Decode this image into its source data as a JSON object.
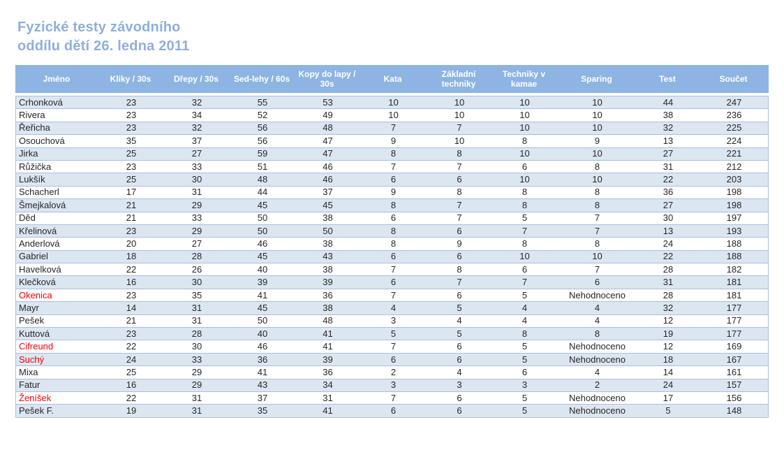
{
  "page_title": {
    "line1": "Fyzické testy závodního",
    "line2": "oddílu dětí 26. ledna 2011"
  },
  "table": {
    "columns": [
      "Jméno",
      "Kliky / 30s",
      "Dřepy / 30s",
      "Sed-lehy / 60s",
      "Kopy do lapy / 30s",
      "Kata",
      "Základní techniky",
      "Techniky v kamae",
      "Sparing",
      "Test",
      "Součet"
    ],
    "rows": [
      {
        "name": "Crhonková",
        "red": false,
        "values": [
          "23",
          "32",
          "55",
          "53",
          "10",
          "10",
          "10",
          "10",
          "44",
          "247"
        ]
      },
      {
        "name": "Rivera",
        "red": false,
        "values": [
          "23",
          "34",
          "52",
          "49",
          "10",
          "10",
          "10",
          "10",
          "38",
          "236"
        ]
      },
      {
        "name": "Řeřicha",
        "red": false,
        "values": [
          "23",
          "32",
          "56",
          "48",
          "7",
          "7",
          "10",
          "10",
          "32",
          "225"
        ]
      },
      {
        "name": "Osouchová",
        "red": false,
        "values": [
          "35",
          "37",
          "56",
          "47",
          "9",
          "10",
          "8",
          "9",
          "13",
          "224"
        ]
      },
      {
        "name": "Jirka",
        "red": false,
        "values": [
          "25",
          "27",
          "59",
          "47",
          "8",
          "8",
          "10",
          "10",
          "27",
          "221"
        ]
      },
      {
        "name": "Růžička",
        "red": false,
        "values": [
          "23",
          "33",
          "51",
          "46",
          "7",
          "7",
          "6",
          "8",
          "31",
          "212"
        ]
      },
      {
        "name": "Lukšík",
        "red": false,
        "values": [
          "25",
          "30",
          "48",
          "46",
          "6",
          "6",
          "10",
          "10",
          "22",
          "203"
        ]
      },
      {
        "name": "Schacherl",
        "red": false,
        "values": [
          "17",
          "31",
          "44",
          "37",
          "9",
          "8",
          "8",
          "8",
          "36",
          "198"
        ]
      },
      {
        "name": "Šmejkalová",
        "red": false,
        "values": [
          "21",
          "29",
          "45",
          "45",
          "8",
          "7",
          "8",
          "8",
          "27",
          "198"
        ]
      },
      {
        "name": "Děd",
        "red": false,
        "values": [
          "21",
          "33",
          "50",
          "38",
          "6",
          "7",
          "5",
          "7",
          "30",
          "197"
        ]
      },
      {
        "name": "Křelinová",
        "red": false,
        "values": [
          "23",
          "29",
          "50",
          "50",
          "8",
          "6",
          "7",
          "7",
          "13",
          "193"
        ]
      },
      {
        "name": "Anderlová",
        "red": false,
        "values": [
          "20",
          "27",
          "46",
          "38",
          "8",
          "9",
          "8",
          "8",
          "24",
          "188"
        ]
      },
      {
        "name": "Gabriel",
        "red": false,
        "values": [
          "18",
          "28",
          "45",
          "43",
          "6",
          "6",
          "10",
          "10",
          "22",
          "188"
        ]
      },
      {
        "name": "Havelková",
        "red": false,
        "values": [
          "22",
          "26",
          "40",
          "38",
          "7",
          "8",
          "6",
          "7",
          "28",
          "182"
        ]
      },
      {
        "name": "Klečková",
        "red": false,
        "values": [
          "16",
          "30",
          "39",
          "39",
          "6",
          "7",
          "7",
          "6",
          "31",
          "181"
        ]
      },
      {
        "name": "Okenica",
        "red": true,
        "values": [
          "23",
          "35",
          "41",
          "36",
          "7",
          "6",
          "5",
          "Nehodnoceno",
          "28",
          "181"
        ]
      },
      {
        "name": "Mayr",
        "red": false,
        "values": [
          "14",
          "31",
          "45",
          "38",
          "4",
          "5",
          "4",
          "4",
          "32",
          "177"
        ]
      },
      {
        "name": "Pešek",
        "red": false,
        "values": [
          "21",
          "31",
          "50",
          "48",
          "3",
          "4",
          "4",
          "4",
          "12",
          "177"
        ]
      },
      {
        "name": "Kuttová",
        "red": false,
        "values": [
          "23",
          "28",
          "40",
          "41",
          "5",
          "5",
          "8",
          "8",
          "19",
          "177"
        ]
      },
      {
        "name": "Cifreund",
        "red": true,
        "values": [
          "22",
          "30",
          "46",
          "41",
          "7",
          "6",
          "5",
          "Nehodnoceno",
          "12",
          "169"
        ]
      },
      {
        "name": "Suchý",
        "red": true,
        "values": [
          "24",
          "33",
          "36",
          "39",
          "6",
          "6",
          "5",
          "Nehodnoceno",
          "18",
          "167"
        ]
      },
      {
        "name": "Mixa",
        "red": false,
        "values": [
          "25",
          "29",
          "41",
          "36",
          "2",
          "4",
          "6",
          "4",
          "14",
          "161"
        ]
      },
      {
        "name": "Fatur",
        "red": false,
        "values": [
          "16",
          "29",
          "43",
          "34",
          "3",
          "3",
          "3",
          "2",
          "24",
          "157"
        ]
      },
      {
        "name": "Ženíšek",
        "red": true,
        "values": [
          "22",
          "31",
          "37",
          "31",
          "7",
          "6",
          "5",
          "Nehodnoceno",
          "17",
          "156"
        ]
      },
      {
        "name": "Pešek F.",
        "red": false,
        "values": [
          "19",
          "31",
          "35",
          "41",
          "6",
          "6",
          "5",
          "Nehodnoceno",
          "5",
          "148"
        ]
      }
    ]
  },
  "colors": {
    "title_text": "#8FAFDC",
    "header_bg": "#8DB4E2",
    "header_text": "#FFFFFF",
    "stripe_bg": "#DCE6F1",
    "row_border": "#A8C0DE",
    "body_text": "#262626",
    "highlight_text": "#FF0000"
  }
}
